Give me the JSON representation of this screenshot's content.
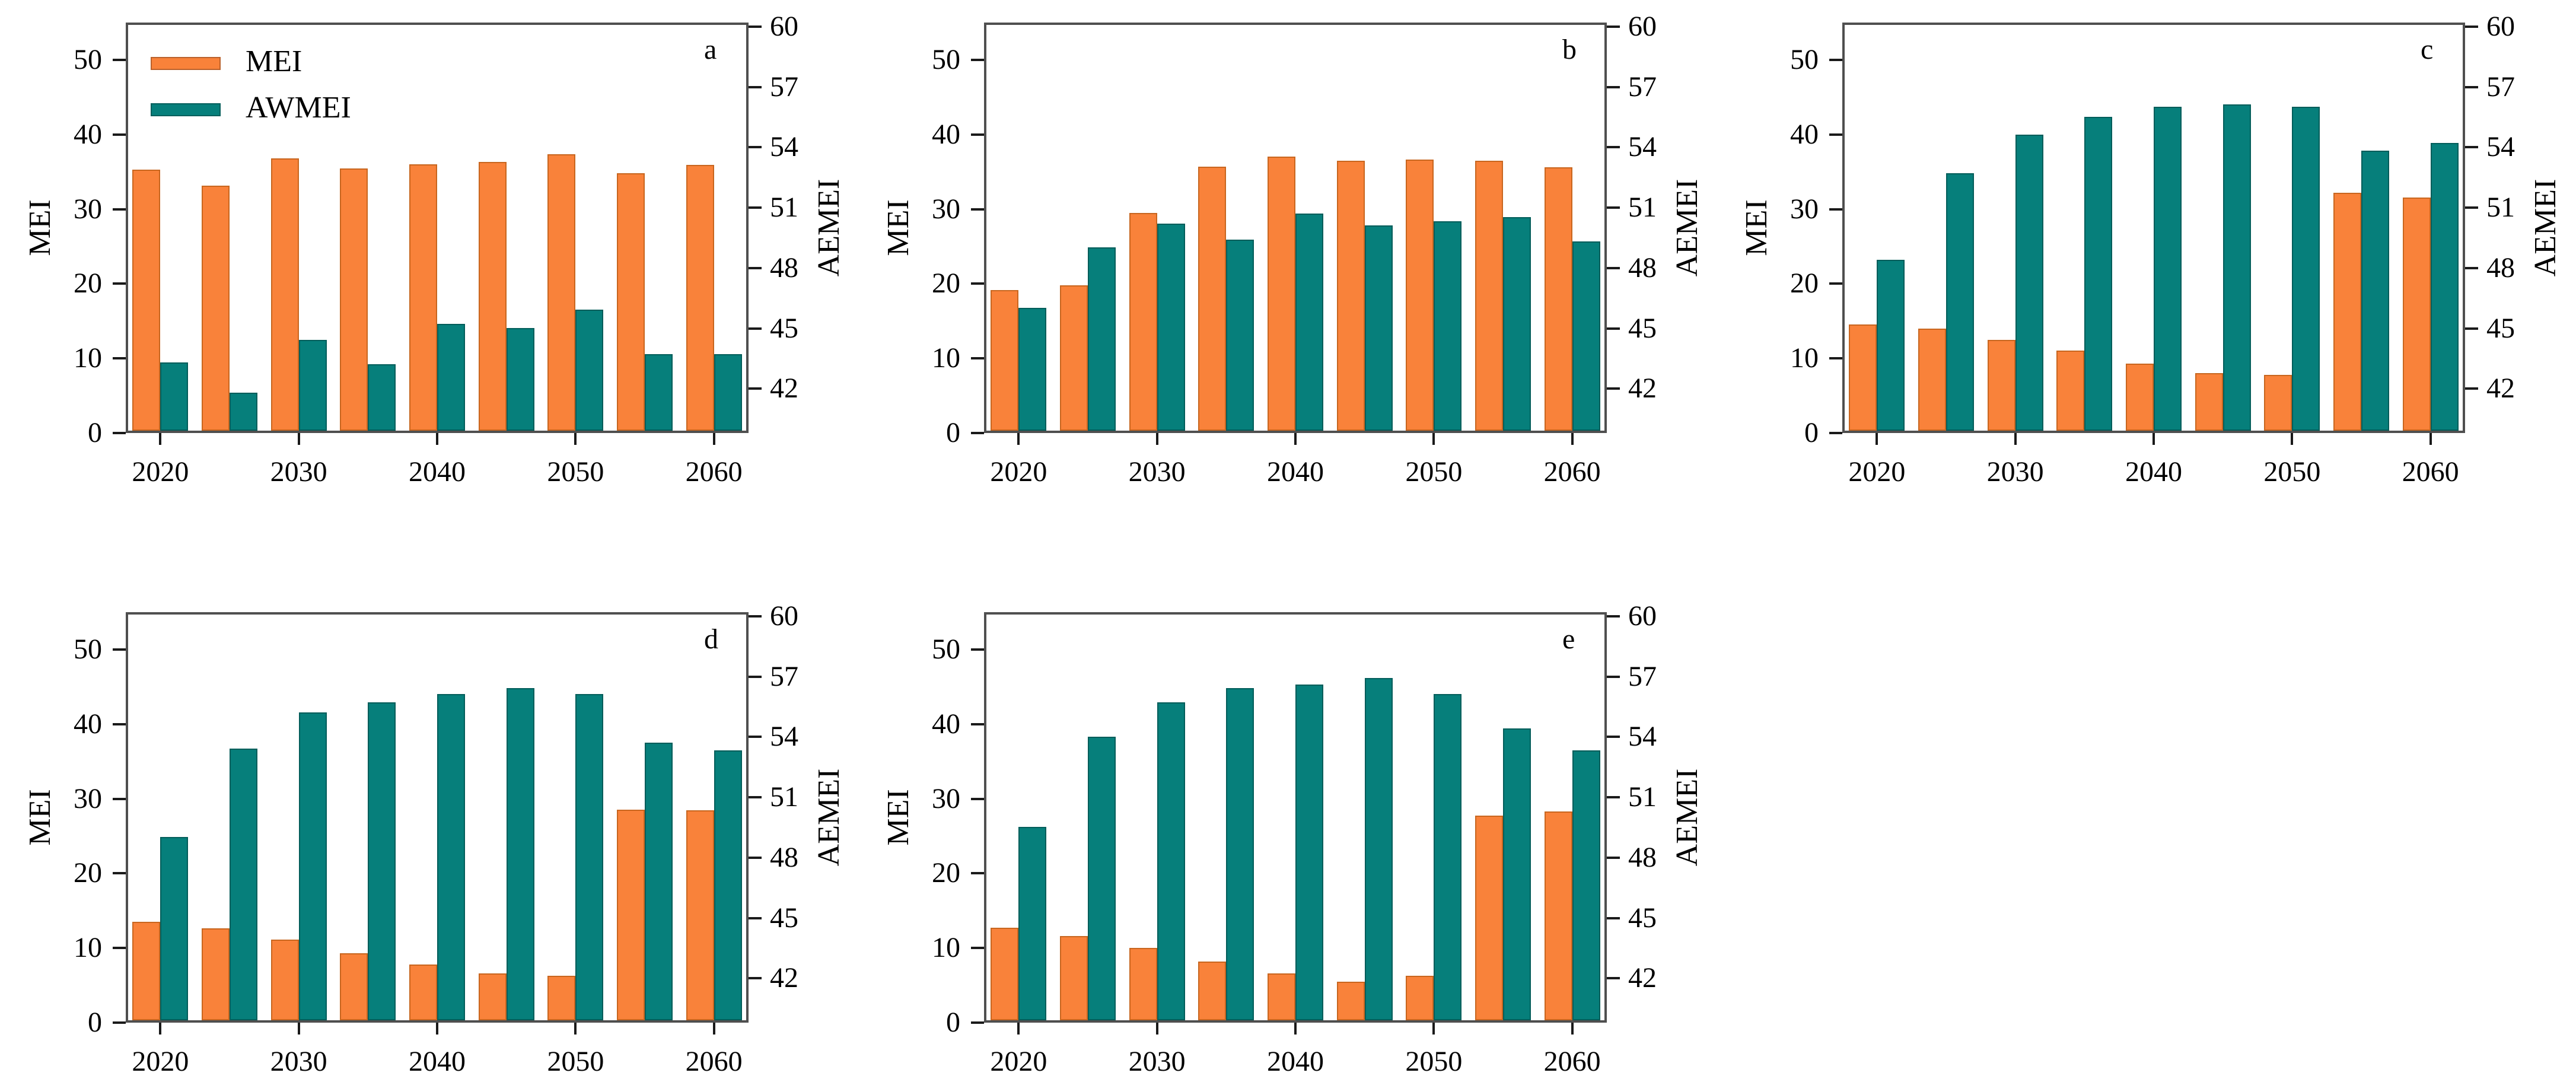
{
  "figure": {
    "background": "#ffffff",
    "colors": {
      "mei": "#F9823A",
      "awmei": "#067F7B",
      "spine": "#4f4f4f",
      "tick": "#1a1a1a"
    },
    "legend": {
      "items": [
        {
          "label": "MEI",
          "color": "#F9823A"
        },
        {
          "label": "AWMEI",
          "color": "#067F7B"
        }
      ]
    }
  },
  "chart_data": [
    {
      "type": "bar",
      "panel_label": "a",
      "ylabel_left": "MEI",
      "ylabel_right": "AEMEI",
      "categories": [
        2020,
        2025,
        2030,
        2035,
        2040,
        2045,
        2050,
        2055,
        2060
      ],
      "x_tick_labels": [
        "2020",
        "2030",
        "2040",
        "2050",
        "2060"
      ],
      "left_axis": {
        "min": 0,
        "max": 55,
        "ticks": [
          0,
          10,
          20,
          30,
          40,
          50
        ]
      },
      "right_axis": {
        "min": 39.8,
        "max": 60.2,
        "ticks": [
          42,
          45,
          48,
          51,
          54,
          57,
          60
        ]
      },
      "legend_visible": true,
      "series": [
        {
          "name": "MEI",
          "axis": "left",
          "color": "#F9823A",
          "values": [
            35.0,
            32.8,
            36.5,
            35.1,
            35.7,
            36.0,
            37.0,
            34.5,
            35.6
          ]
        },
        {
          "name": "AWMEI",
          "axis": "right",
          "color": "#067F7B",
          "values": [
            43.2,
            41.7,
            44.3,
            43.1,
            45.1,
            44.9,
            45.8,
            43.6,
            43.6
          ]
        }
      ]
    },
    {
      "type": "bar",
      "panel_label": "b",
      "ylabel_left": "MEI",
      "ylabel_right": "AEMEI",
      "categories": [
        2020,
        2025,
        2030,
        2035,
        2040,
        2045,
        2050,
        2055,
        2060
      ],
      "x_tick_labels": [
        "2020",
        "2030",
        "2040",
        "2050",
        "2060"
      ],
      "left_axis": {
        "min": 0,
        "max": 55,
        "ticks": [
          0,
          10,
          20,
          30,
          40,
          50
        ]
      },
      "right_axis": {
        "min": 39.8,
        "max": 60.2,
        "ticks": [
          42,
          45,
          48,
          51,
          54,
          57,
          60
        ]
      },
      "legend_visible": false,
      "series": [
        {
          "name": "MEI",
          "axis": "left",
          "color": "#F9823A",
          "values": [
            18.8,
            19.5,
            29.2,
            35.4,
            36.7,
            36.2,
            36.3,
            36.2,
            35.3
          ]
        },
        {
          "name": "AWMEI",
          "axis": "right",
          "color": "#067F7B",
          "values": [
            45.9,
            48.9,
            50.1,
            49.3,
            50.6,
            50.0,
            50.2,
            50.4,
            49.2
          ]
        }
      ]
    },
    {
      "type": "bar",
      "panel_label": "c",
      "ylabel_left": "MEI",
      "ylabel_right": "AEMEI",
      "categories": [
        2020,
        2025,
        2030,
        2035,
        2040,
        2045,
        2050,
        2055,
        2060
      ],
      "x_tick_labels": [
        "2020",
        "2030",
        "2040",
        "2050",
        "2060"
      ],
      "left_axis": {
        "min": 0,
        "max": 55,
        "ticks": [
          0,
          10,
          20,
          30,
          40,
          50
        ]
      },
      "right_axis": {
        "min": 39.8,
        "max": 60.2,
        "ticks": [
          42,
          45,
          48,
          51,
          54,
          57,
          60
        ]
      },
      "legend_visible": false,
      "series": [
        {
          "name": "MEI",
          "axis": "left",
          "color": "#F9823A",
          "values": [
            14.2,
            13.7,
            12.2,
            10.7,
            9.0,
            7.7,
            7.5,
            31.9,
            31.2
          ]
        },
        {
          "name": "AWMEI",
          "axis": "right",
          "color": "#067F7B",
          "values": [
            48.3,
            52.6,
            54.5,
            55.4,
            55.9,
            56.0,
            55.9,
            53.7,
            54.1
          ]
        }
      ]
    },
    {
      "type": "bar",
      "panel_label": "d",
      "ylabel_left": "MEI",
      "ylabel_right": "AEMEI",
      "categories": [
        2020,
        2025,
        2030,
        2035,
        2040,
        2045,
        2050,
        2055,
        2060
      ],
      "x_tick_labels": [
        "2020",
        "2030",
        "2040",
        "2050",
        "2060"
      ],
      "left_axis": {
        "min": 0,
        "max": 55,
        "ticks": [
          0,
          10,
          20,
          30,
          40,
          50
        ]
      },
      "right_axis": {
        "min": 39.8,
        "max": 60.2,
        "ticks": [
          42,
          45,
          48,
          51,
          54,
          57,
          60
        ]
      },
      "legend_visible": false,
      "series": [
        {
          "name": "MEI",
          "axis": "left",
          "color": "#F9823A",
          "values": [
            13.2,
            12.3,
            10.8,
            9.0,
            7.5,
            6.3,
            6.0,
            28.2,
            28.1
          ]
        },
        {
          "name": "AWMEI",
          "axis": "right",
          "color": "#067F7B",
          "values": [
            48.9,
            53.3,
            55.1,
            55.6,
            56.0,
            56.3,
            56.0,
            53.6,
            53.2
          ]
        }
      ]
    },
    {
      "type": "bar",
      "panel_label": "e",
      "ylabel_left": "MEI",
      "ylabel_right": "AEMEI",
      "categories": [
        2020,
        2025,
        2030,
        2035,
        2040,
        2045,
        2050,
        2055,
        2060
      ],
      "x_tick_labels": [
        "2020",
        "2030",
        "2040",
        "2050",
        "2060"
      ],
      "left_axis": {
        "min": 0,
        "max": 55,
        "ticks": [
          0,
          10,
          20,
          30,
          40,
          50
        ]
      },
      "right_axis": {
        "min": 39.8,
        "max": 60.2,
        "ticks": [
          42,
          45,
          48,
          51,
          54,
          57,
          60
        ]
      },
      "legend_visible": false,
      "series": [
        {
          "name": "MEI",
          "axis": "left",
          "color": "#F9823A",
          "values": [
            12.4,
            11.3,
            9.7,
            7.9,
            6.3,
            5.2,
            6.0,
            27.4,
            28.0
          ]
        },
        {
          "name": "AWMEI",
          "axis": "right",
          "color": "#067F7B",
          "values": [
            49.4,
            53.9,
            55.6,
            56.3,
            56.5,
            56.8,
            56.0,
            54.3,
            53.2
          ]
        }
      ]
    }
  ]
}
